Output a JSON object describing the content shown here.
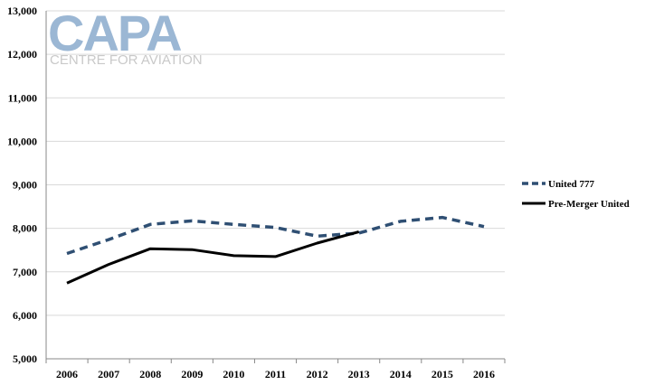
{
  "watermark": {
    "brand": "CAPA",
    "tagline": "CENTRE FOR AVIATION"
  },
  "colors": {
    "united_777": "#2f4f73",
    "pre_merger": "#000000",
    "gridline": "#d9d9d9",
    "axis": "#888888"
  },
  "chart_data": {
    "type": "line",
    "title": "",
    "xlabel": "",
    "ylabel": "",
    "x": [
      "2006",
      "2007",
      "2008",
      "2009",
      "2010",
      "2011",
      "2012",
      "2013",
      "2014",
      "2015",
      "2016"
    ],
    "ylim": [
      5000,
      13000
    ],
    "yticks": [
      5000,
      6000,
      7000,
      8000,
      9000,
      10000,
      11000,
      12000,
      13000
    ],
    "ytick_labels": [
      "5,000",
      "6,000",
      "7,000",
      "8,000",
      "9,000",
      "10,000",
      "11,000",
      "12,000",
      "13,000"
    ],
    "grid": true,
    "legend_position": "right",
    "series": [
      {
        "name": "United 777",
        "style": "dashed",
        "values": [
          7420,
          7740,
          8090,
          8170,
          8090,
          8020,
          7820,
          7890,
          8160,
          8250,
          8040
        ]
      },
      {
        "name": "Pre-Merger United",
        "style": "solid",
        "values": [
          6740,
          7170,
          7530,
          7510,
          7370,
          7350,
          7660,
          7920,
          null,
          null,
          null
        ]
      }
    ]
  }
}
